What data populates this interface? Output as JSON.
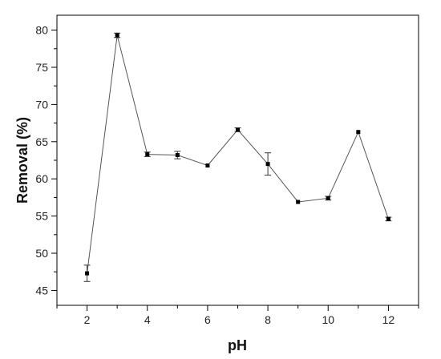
{
  "chart_data": {
    "type": "line",
    "title": "",
    "xlabel": "pH",
    "ylabel": "Removal (%)",
    "xlim": [
      1,
      13
    ],
    "ylim": [
      43,
      82
    ],
    "x_ticks": [
      2,
      4,
      6,
      8,
      10,
      12
    ],
    "y_ticks": [
      45,
      50,
      55,
      60,
      65,
      70,
      75,
      80
    ],
    "grid": false,
    "series": [
      {
        "x": [
          2,
          3,
          4,
          5,
          6,
          7,
          8,
          9,
          10,
          11,
          12
        ],
        "y": [
          47.3,
          79.3,
          63.3,
          63.2,
          61.8,
          66.6,
          62.0,
          56.9,
          57.4,
          66.3,
          54.6
        ],
        "error": [
          1.1,
          0.3,
          0.3,
          0.5,
          0.0,
          0.25,
          1.5,
          0.0,
          0.25,
          0.0,
          0.25
        ],
        "color": "#000000",
        "line_color": "#555555",
        "marker": "square"
      }
    ]
  }
}
